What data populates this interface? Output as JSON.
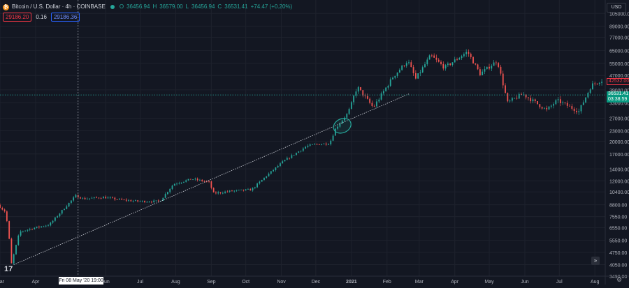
{
  "legend": {
    "symbol": "Bitcoin / U.S. Dollar · 4h · COINBASE",
    "open_label": "O",
    "open": "36456.94",
    "high_label": "H",
    "high": "36579.00",
    "low_label": "L",
    "low": "36456.94",
    "close_label": "C",
    "close": "36531.41",
    "change": "+74.47 (+0.20%)"
  },
  "indicators": {
    "bid": "29186.20",
    "spread": "0.16",
    "ask": "29186.36"
  },
  "currency_button": "USD",
  "cursor_x_label": "Fri 08 May '20   19:00",
  "price_tags": {
    "red": "42532.00",
    "current": "36531.41",
    "countdown": "03:38:59"
  },
  "tv_logo": "17",
  "colors": {
    "background": "#131722",
    "up": "#26a69a",
    "down": "#ef5350",
    "grid": "#1e222d",
    "text": "#b2b5be",
    "trendline": "#d1d4dc",
    "ellipse": "#26a69a"
  },
  "chart_data": {
    "type": "candlestick",
    "title": "Bitcoin / U.S. Dollar · 4h · COINBASE",
    "y_scale": "log",
    "ylim": [
      3490,
      125000
    ],
    "y_ticks": [
      105000,
      89000,
      77000,
      65000,
      55000,
      47000,
      39000,
      33000,
      27000,
      23000,
      20000,
      17000,
      14000,
      12000,
      10400,
      8800,
      7550,
      6550,
      5550,
      4750,
      4050,
      3490
    ],
    "y_tick_labels": [
      "105000.00",
      "89000.00",
      "77000.00",
      "65000.00",
      "55000.00",
      "47000.00",
      "39000.00",
      "33000.00",
      "27000.00",
      "23000.00",
      "20000.00",
      "17000.00",
      "14000.00",
      "12000.00",
      "10400.00",
      "8800.00",
      "7550.00",
      "6550.00",
      "5550.00",
      "4750.00",
      "4050.00",
      "3490.00"
    ],
    "x_range": [
      "2020-03-01",
      "2021-08-10"
    ],
    "x_ticks": [
      {
        "date": "2020-03-01",
        "label": "Mar"
      },
      {
        "date": "2020-04-01",
        "label": "Apr"
      },
      {
        "date": "2020-06-01",
        "label": "Jun"
      },
      {
        "date": "2020-07-01",
        "label": "Jul"
      },
      {
        "date": "2020-08-01",
        "label": "Aug"
      },
      {
        "date": "2020-09-01",
        "label": "Sep"
      },
      {
        "date": "2020-10-01",
        "label": "Oct"
      },
      {
        "date": "2020-11-01",
        "label": "Nov"
      },
      {
        "date": "2020-12-01",
        "label": "Dec"
      },
      {
        "date": "2021-01-01",
        "label": "2021"
      },
      {
        "date": "2021-02-01",
        "label": "Feb"
      },
      {
        "date": "2021-03-01",
        "label": "Mar"
      },
      {
        "date": "2021-04-01",
        "label": "Apr"
      },
      {
        "date": "2021-05-01",
        "label": "May"
      },
      {
        "date": "2021-06-01",
        "label": "Jun"
      },
      {
        "date": "2021-07-01",
        "label": "Jul"
      },
      {
        "date": "2021-08-01",
        "label": "Aug"
      }
    ],
    "price_path": [
      [
        "2020-03-01",
        8800
      ],
      [
        "2020-03-08",
        8000
      ],
      [
        "2020-03-12",
        5000
      ],
      [
        "2020-03-13",
        4100
      ],
      [
        "2020-03-20",
        6200
      ],
      [
        "2020-04-01",
        6500
      ],
      [
        "2020-04-15",
        6800
      ],
      [
        "2020-04-30",
        8700
      ],
      [
        "2020-05-08",
        9900
      ],
      [
        "2020-05-15",
        9500
      ],
      [
        "2020-06-01",
        9700
      ],
      [
        "2020-06-15",
        9400
      ],
      [
        "2020-07-01",
        9200
      ],
      [
        "2020-07-20",
        9200
      ],
      [
        "2020-08-01",
        11500
      ],
      [
        "2020-08-17",
        12300
      ],
      [
        "2020-09-01",
        11800
      ],
      [
        "2020-09-05",
        10200
      ],
      [
        "2020-09-20",
        10500
      ],
      [
        "2020-10-08",
        10700
      ],
      [
        "2020-10-21",
        12800
      ],
      [
        "2020-11-05",
        15500
      ],
      [
        "2020-11-25",
        18800
      ],
      [
        "2020-12-01",
        19200
      ],
      [
        "2020-12-15",
        19500
      ],
      [
        "2020-12-20",
        23500
      ],
      [
        "2020-12-31",
        29000
      ],
      [
        "2021-01-08",
        40500
      ],
      [
        "2021-01-22",
        31000
      ],
      [
        "2021-02-08",
        46000
      ],
      [
        "2021-02-21",
        57000
      ],
      [
        "2021-02-28",
        45000
      ],
      [
        "2021-03-13",
        61000
      ],
      [
        "2021-03-25",
        52000
      ],
      [
        "2021-04-14",
        64000
      ],
      [
        "2021-04-25",
        48000
      ],
      [
        "2021-05-10",
        57000
      ],
      [
        "2021-05-19",
        33000
      ],
      [
        "2021-06-01",
        37000
      ],
      [
        "2021-06-22",
        30000
      ],
      [
        "2021-07-01",
        34000
      ],
      [
        "2021-07-20",
        29500
      ],
      [
        "2021-07-31",
        41500
      ],
      [
        "2021-08-08",
        44000
      ]
    ],
    "trendline": [
      [
        "2020-03-13",
        4050
      ],
      [
        "2021-02-20",
        37000
      ]
    ],
    "annotations": [
      {
        "type": "ellipse",
        "center": [
          "2020-12-24",
          24500
        ]
      },
      {
        "type": "crosshair-vertical",
        "date": "2020-05-08"
      },
      {
        "type": "horizontal-price-line",
        "value": 36531.41
      }
    ]
  }
}
